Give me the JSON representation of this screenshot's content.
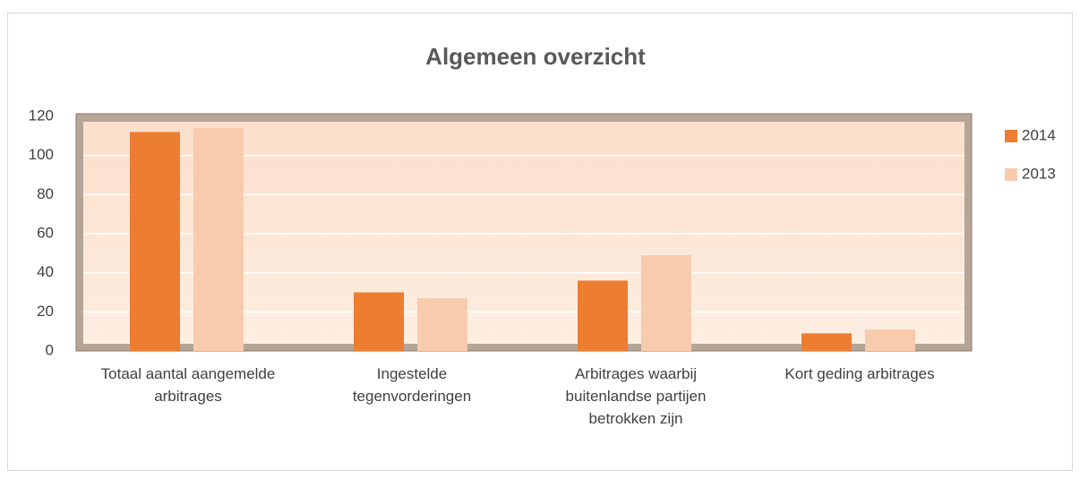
{
  "chart_data": {
    "type": "bar",
    "title": "Algemeen overzicht",
    "categories": [
      "Totaal aantal aangemelde arbitrages",
      "Ingestelde tegenvorderingen",
      "Arbitrages waarbij buitenlandse partijen betrokken zijn",
      "Kort geding arbitrages"
    ],
    "series": [
      {
        "name": "2014",
        "color": "#ed7d31",
        "values": [
          112,
          30,
          36,
          9
        ]
      },
      {
        "name": "2013",
        "color": "#f8cbad",
        "values": [
          114,
          27,
          49,
          11
        ]
      }
    ],
    "ylim": [
      0,
      120
    ],
    "yticks": [
      0,
      20,
      40,
      60,
      80,
      100,
      120
    ],
    "grid": true,
    "legend": "right"
  }
}
